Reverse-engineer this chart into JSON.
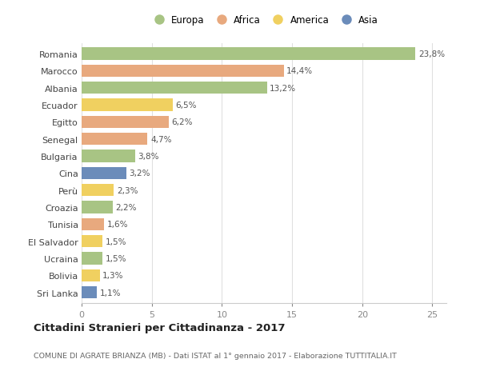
{
  "countries": [
    "Romania",
    "Marocco",
    "Albania",
    "Ecuador",
    "Egitto",
    "Senegal",
    "Bulgaria",
    "Cina",
    "Perù",
    "Croazia",
    "Tunisia",
    "El Salvador",
    "Ucraina",
    "Bolivia",
    "Sri Lanka"
  ],
  "values": [
    23.8,
    14.4,
    13.2,
    6.5,
    6.2,
    4.7,
    3.8,
    3.2,
    2.3,
    2.2,
    1.6,
    1.5,
    1.5,
    1.3,
    1.1
  ],
  "continents": [
    "Europa",
    "Africa",
    "Europa",
    "America",
    "Africa",
    "Africa",
    "Europa",
    "Asia",
    "America",
    "Europa",
    "Africa",
    "America",
    "Europa",
    "America",
    "Asia"
  ],
  "continent_colors": {
    "Europa": "#a8c484",
    "Africa": "#e8a97e",
    "America": "#f0d060",
    "Asia": "#6b8cba"
  },
  "legend_order": [
    "Europa",
    "Africa",
    "America",
    "Asia"
  ],
  "title": "Cittadini Stranieri per Cittadinanza - 2017",
  "subtitle": "COMUNE DI AGRATE BRIANZA (MB) - Dati ISTAT al 1° gennaio 2017 - Elaborazione TUTTITALIA.IT",
  "xlim": [
    0,
    26
  ],
  "xticks": [
    0,
    5,
    10,
    15,
    20,
    25
  ],
  "background_color": "#ffffff",
  "grid_color": "#e0e0e0",
  "bar_height": 0.72
}
